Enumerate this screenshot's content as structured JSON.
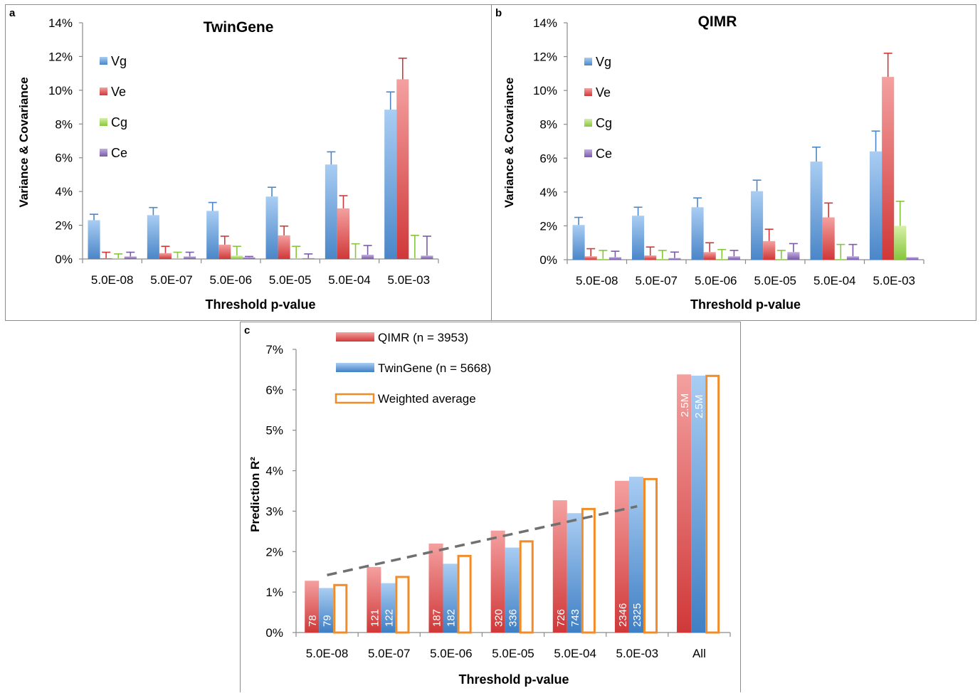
{
  "figure": {
    "panels": [
      "a",
      "b",
      "c"
    ]
  },
  "chart_data": [
    {
      "id": "a",
      "type": "bar",
      "title": "TwinGene",
      "xlabel": "Threshold p-value",
      "ylabel": "Variance & Covariance",
      "categories": [
        "5.0E-08",
        "5.0E-07",
        "5.0E-06",
        "5.0E-05",
        "5.0E-04",
        "5.0E-03"
      ],
      "ylim": [
        0,
        14
      ],
      "yticks": [
        "0%",
        "2%",
        "4%",
        "6%",
        "8%",
        "10%",
        "12%",
        "14%"
      ],
      "grid": false,
      "legend": "left",
      "series": [
        {
          "name": "Vg",
          "color": "#5b9bd5",
          "values": [
            2.3,
            2.6,
            2.85,
            3.7,
            5.6,
            8.85
          ],
          "err": [
            0.35,
            0.45,
            0.5,
            0.55,
            0.75,
            1.05
          ]
        },
        {
          "name": "Ve",
          "color": "#e04545",
          "values": [
            0.05,
            0.35,
            0.85,
            1.4,
            3.0,
            10.65
          ],
          "err": [
            0.35,
            0.4,
            0.5,
            0.55,
            0.75,
            1.25
          ]
        },
        {
          "name": "Cg",
          "color": "#92d050",
          "values": [
            0.05,
            0.05,
            0.2,
            0.05,
            0.05,
            0.05
          ],
          "err": [
            0.25,
            0.35,
            0.55,
            0.7,
            0.85,
            1.35
          ]
        },
        {
          "name": "Ce",
          "color": "#8064a2",
          "values": [
            0.15,
            0.15,
            0.1,
            0.05,
            0.25,
            0.2
          ],
          "err": [
            0.25,
            0.25,
            0.05,
            0.25,
            0.55,
            1.15
          ]
        }
      ]
    },
    {
      "id": "b",
      "type": "bar",
      "title": "QIMR",
      "xlabel": "Threshold p-value",
      "ylabel": "Variance & Covariance",
      "categories": [
        "5.0E-08",
        "5.0E-07",
        "5.0E-06",
        "5.0E-05",
        "5.0E-04",
        "5.0E-03"
      ],
      "ylim": [
        0,
        14
      ],
      "yticks": [
        "0%",
        "2%",
        "4%",
        "6%",
        "8%",
        "10%",
        "12%",
        "14%"
      ],
      "grid": false,
      "legend": "left",
      "series": [
        {
          "name": "Vg",
          "color": "#5b9bd5",
          "values": [
            2.05,
            2.6,
            3.1,
            4.05,
            5.8,
            6.4
          ],
          "err": [
            0.45,
            0.5,
            0.55,
            0.65,
            0.85,
            1.2
          ]
        },
        {
          "name": "Ve",
          "color": "#e04545",
          "values": [
            0.2,
            0.25,
            0.45,
            1.1,
            2.5,
            10.8
          ],
          "err": [
            0.45,
            0.5,
            0.55,
            0.7,
            0.85,
            1.4
          ]
        },
        {
          "name": "Cg",
          "color": "#92d050",
          "values": [
            0.05,
            0.05,
            0.05,
            0.05,
            0.05,
            2.0
          ],
          "err": [
            0.5,
            0.5,
            0.55,
            0.5,
            0.85,
            1.45
          ]
        },
        {
          "name": "Ce",
          "color": "#8064a2",
          "values": [
            0.15,
            0.1,
            0.2,
            0.45,
            0.2,
            0.15
          ],
          "err": [
            0.35,
            0.35,
            0.35,
            0.5,
            0.7,
            0.0
          ]
        }
      ]
    },
    {
      "id": "c",
      "type": "bar",
      "title": "",
      "xlabel": "Threshold p-value",
      "ylabel": "Prediction R²",
      "categories": [
        "5.0E-08",
        "5.0E-07",
        "5.0E-06",
        "5.0E-05",
        "5.0E-04",
        "5.0E-03",
        "All"
      ],
      "ylim": [
        0,
        7
      ],
      "yticks": [
        "0%",
        "1%",
        "2%",
        "3%",
        "4%",
        "5%",
        "6%",
        "7%"
      ],
      "grid": false,
      "legend": "top-left",
      "series": [
        {
          "name": "QIMR (n = 3953)",
          "color": "#e04545",
          "style": "gradient",
          "values": [
            1.28,
            1.62,
            2.2,
            2.52,
            3.27,
            3.75,
            6.38
          ],
          "labels": [
            "78",
            "121",
            "187",
            "320",
            "726",
            "2346",
            "2.5M"
          ]
        },
        {
          "name": "TwinGene (n = 5668)",
          "color": "#4a86c8",
          "style": "gradient",
          "values": [
            1.1,
            1.22,
            1.7,
            2.1,
            2.95,
            3.85,
            6.35
          ],
          "labels": [
            "79",
            "122",
            "182",
            "336",
            "743",
            "2325",
            "2.5M"
          ]
        },
        {
          "name": "Weighted average",
          "color": "#f28c28",
          "style": "outline",
          "values": [
            1.2,
            1.4,
            1.92,
            2.28,
            3.08,
            3.82,
            6.37
          ],
          "labels": []
        }
      ],
      "trendline": {
        "style": "dashed",
        "color": "#707070",
        "from": 1.42,
        "to": 3.12,
        "span": "5.0E-08..5.0E-03"
      }
    }
  ]
}
